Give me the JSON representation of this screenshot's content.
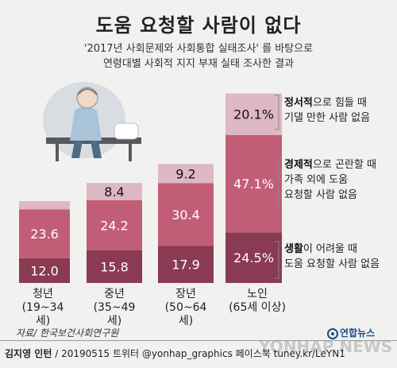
{
  "title": "도움 요청할 사람이 없다",
  "subtitle_line1": "'2017년 사회문제와 사회통합 실태조사' 를 바탕으로",
  "subtitle_line2": "연령대별 사회적 지지 부재 실태 조사한 결과",
  "legend": {
    "emotional_bold": "정서적",
    "emotional_rest1": "으로 힘들 때",
    "emotional_rest2": "기댈 만한 사람 없음",
    "economic_bold": "경제적",
    "economic_rest1": "으로 곤란할 때",
    "economic_rest2": "가족 외에 도움",
    "economic_rest3": "요청할 사람 없음",
    "daily_bold": "생활",
    "daily_rest1": "이 어려울 때",
    "daily_rest2": "도움 요청할 사람 없음"
  },
  "colors": {
    "daily": "#8a3a52",
    "economic": "#c25d77",
    "emotional": "#ddb8c4",
    "background": "#f1f1ef"
  },
  "chart_data": {
    "type": "bar",
    "stacked": true,
    "categories": [
      "청년",
      "중년",
      "장년",
      "노인"
    ],
    "category_sublabels": [
      "(19~34세)",
      "(35~49세)",
      "(50~64세)",
      "(65세 이상)"
    ],
    "series": [
      {
        "name": "생활이 어려울 때 도움 요청할 사람 없음",
        "values": [
          12.0,
          15.8,
          17.9,
          24.5
        ],
        "labels": [
          "12.0",
          "15.8",
          "17.9",
          "24.5%"
        ]
      },
      {
        "name": "경제적으로 곤란할 때 가족 외에 도움 요청할 사람 없음",
        "values": [
          23.6,
          24.2,
          30.4,
          47.1
        ],
        "labels": [
          "23.6",
          "24.2",
          "30.4",
          "47.1%"
        ]
      },
      {
        "name": "정서적으로 힘들 때 기댈 만한 사람 없음",
        "values": [
          4.0,
          8.4,
          9.2,
          20.1
        ],
        "labels": [
          "",
          "8.4",
          "9.2",
          "20.1%"
        ]
      }
    ]
  },
  "source": "자료/ 한국보건사회연구원",
  "credit_name": "김지영 인턴",
  "credit_rest": " / 20190515 트위터 @yonhap_graphics  페이스북 tuney.kr/LeYN1",
  "logo_text": "연합뉴스",
  "watermark": "YONHAP NEWS"
}
